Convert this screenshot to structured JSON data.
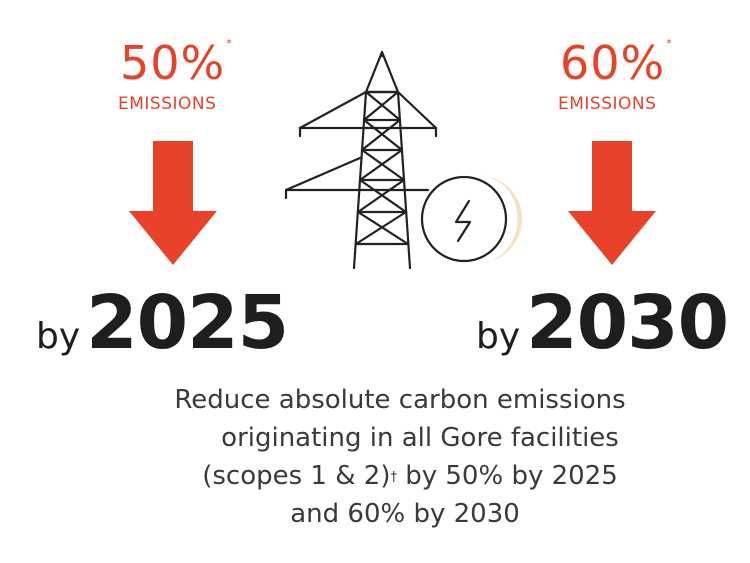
{
  "left": {
    "percent": "50%",
    "percent_mark": "*",
    "emissions_label": "EMISSIONS",
    "by_label": "by",
    "year": "2025"
  },
  "right": {
    "percent": "60%",
    "percent_mark": "*",
    "emissions_label": "EMISSIONS",
    "by_label": "by",
    "year": "2030"
  },
  "description": {
    "line1": "Reduce absolute carbon emissions",
    "line2": "originating in all Gore facilities",
    "line3_pre": "(scopes 1 & 2)",
    "line3_mark": "†",
    "line3_post": " by 50% by 2025",
    "line4": "and 60% by 2030"
  },
  "colors": {
    "accent": "#e8432a",
    "text_dark": "#1e1e1e",
    "text_body": "#3a3a3a",
    "glow": "#f6dcc0"
  },
  "icons": [
    "down-arrow-icon",
    "power-tower-icon",
    "electricity-bolt-icon"
  ]
}
